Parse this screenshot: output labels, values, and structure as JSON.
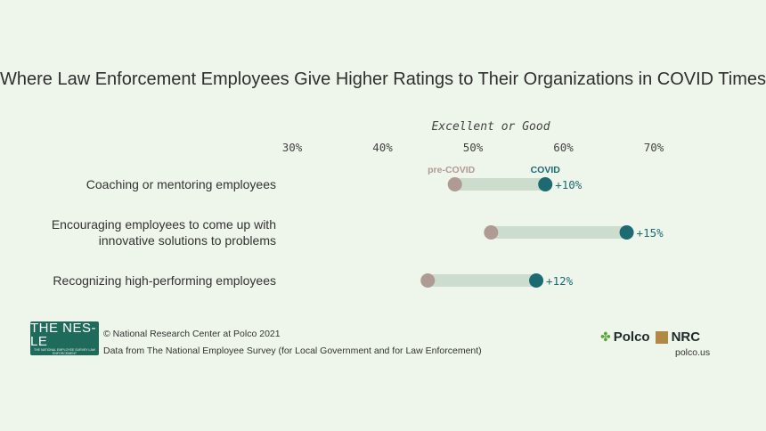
{
  "chart_data": {
    "type": "dumbbell",
    "title": "Where Law Enforcement Employees Give Higher Ratings to Their Organizations in COVID Times",
    "axis_title": "Excellent or Good",
    "x_ticks": [
      "30%",
      "40%",
      "50%",
      "60%",
      "70%"
    ],
    "xlim": [
      30,
      70
    ],
    "series": [
      {
        "name": "pre-COVID",
        "color": "#b09a94"
      },
      {
        "name": "COVID",
        "color": "#1d6a73"
      }
    ],
    "categories": [
      "Coaching or mentoring employees",
      "Encouraging employees to come up with innovative solutions to problems",
      "Recognizing high-performing employees"
    ],
    "category_lines": [
      [
        "Coaching or mentoring employees"
      ],
      [
        "Encouraging employees to come up with",
        "innovative solutions to problems"
      ],
      [
        "Recognizing high-performing employees"
      ]
    ],
    "pre_values": [
      48,
      52,
      45
    ],
    "covid_values": [
      58,
      67,
      57
    ],
    "change_labels": [
      "+10%",
      "+15%",
      "+12%"
    ],
    "bar_color": "#ccdccd"
  },
  "footer": {
    "logo_main": "THE NES-LE",
    "logo_sub": "THE NATIONAL EMPLOYEE SURVEY LAW ENFORCEMENT",
    "copyright": "© National Research Center at Polco 2021",
    "source": "Data from The National Employee Survey (for Local Government and for Law Enforcement)",
    "brand_left": "Polco",
    "brand_right": "NRC",
    "site": "polco.us"
  }
}
